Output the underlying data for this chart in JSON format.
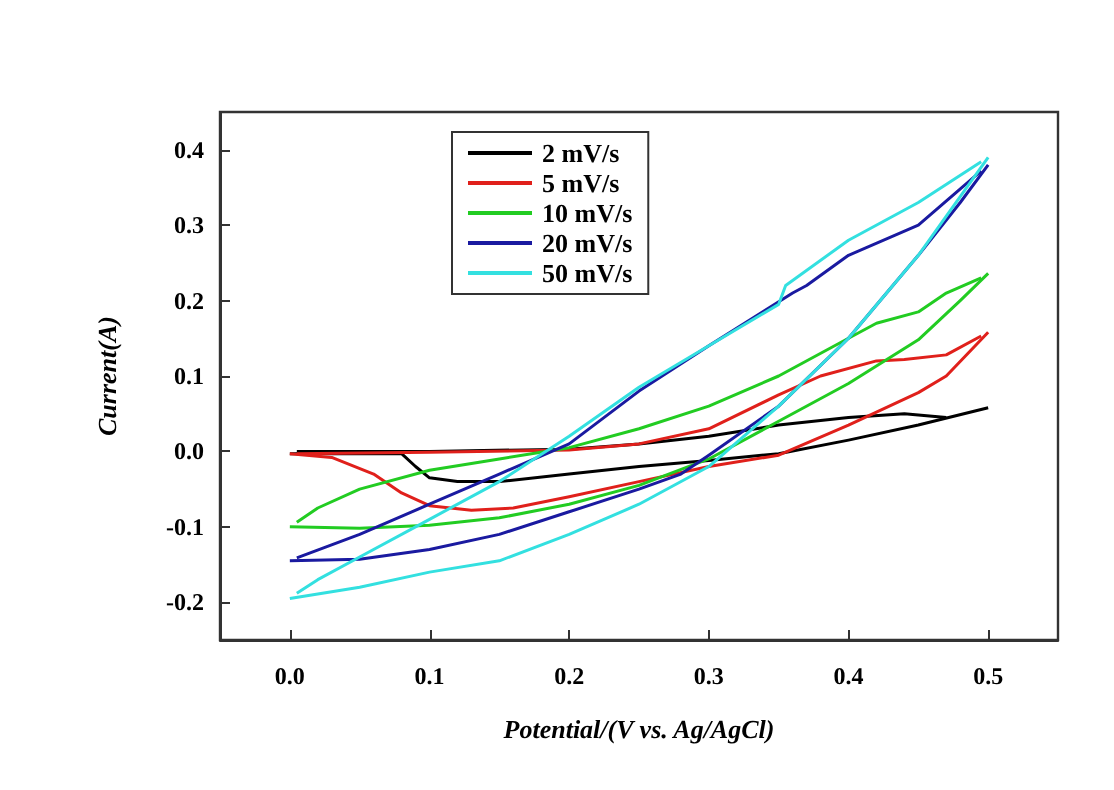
{
  "chart_data": {
    "type": "line",
    "xlabel": "Potential/(V vs. Ag/AgCl)",
    "ylabel": "Current(A)",
    "xlim": [
      -0.05,
      0.55
    ],
    "ylim": [
      -0.25,
      0.45
    ],
    "xticks": [
      {
        "value": 0,
        "label": "0.0"
      },
      0.1,
      0.2,
      0.3,
      0.4,
      0.5
    ],
    "yticks": [
      -0.2,
      -0.1,
      {
        "value": 0,
        "label": "0.0"
      },
      0.1,
      0.2,
      0.3,
      0.4
    ],
    "legend": "top",
    "grid": false,
    "marker": "none",
    "line_style": "solid",
    "series": [
      {
        "name": "2 mV/s",
        "color": "#000000",
        "x": [
          0,
          0.08,
          0.09,
          0.1,
          0.12,
          0.15,
          0.2,
          0.25,
          0.3,
          0.35,
          0.4,
          0.45,
          0.5
        ],
        "values": [
          -0.003,
          -0.003,
          -0.02,
          -0.035,
          -0.04,
          -0.04,
          -0.03,
          -0.02,
          -0.012,
          -0.003,
          0.015,
          0.035,
          0.058
        ]
      },
      {
        "color": "#000000",
        "x": [
          0.005,
          0.1,
          0.2,
          0.25,
          0.3,
          0.35,
          0.4,
          0.44,
          0.47
        ],
        "values": [
          0,
          0,
          0.003,
          0.01,
          0.02,
          0.035,
          0.045,
          0.05,
          0.045
        ]
      },
      {
        "name": "5 mV/s",
        "color": "#e0201b",
        "x": [
          0,
          0.03,
          0.06,
          0.08,
          0.1,
          0.13,
          0.16,
          0.2,
          0.25,
          0.3,
          0.35,
          0.4,
          0.45,
          0.47,
          0.5
        ],
        "values": [
          -0.003,
          -0.008,
          -0.03,
          -0.055,
          -0.072,
          -0.078,
          -0.075,
          -0.06,
          -0.04,
          -0.02,
          -0.005,
          0.035,
          0.078,
          0.1,
          0.158
        ]
      },
      {
        "color": "#e0201b",
        "x": [
          0.005,
          0.1,
          0.2,
          0.25,
          0.3,
          0.35,
          0.38,
          0.42,
          0.44,
          0.47,
          0.495
        ],
        "values": [
          -0.003,
          -0.001,
          0.002,
          0.01,
          0.03,
          0.075,
          0.1,
          0.12,
          0.122,
          0.128,
          0.153
        ]
      },
      {
        "name": "10 mV/s",
        "color": "#22cc22",
        "x": [
          0,
          0.05,
          0.1,
          0.15,
          0.2,
          0.25,
          0.3,
          0.35,
          0.4,
          0.45,
          0.48,
          0.5
        ],
        "values": [
          -0.1,
          -0.102,
          -0.098,
          -0.088,
          -0.07,
          -0.045,
          -0.01,
          0.04,
          0.09,
          0.148,
          0.2,
          0.236
        ]
      },
      {
        "color": "#22cc22",
        "x": [
          0.005,
          0.02,
          0.05,
          0.1,
          0.15,
          0.2,
          0.25,
          0.3,
          0.35,
          0.4,
          0.42,
          0.45,
          0.47,
          0.495
        ],
        "values": [
          -0.094,
          -0.075,
          -0.05,
          -0.025,
          -0.01,
          0.005,
          0.03,
          0.06,
          0.1,
          0.15,
          0.17,
          0.185,
          0.21,
          0.23
        ]
      },
      {
        "name": "20 mV/s",
        "color": "#1a1aa0",
        "x": [
          0,
          0.05,
          0.1,
          0.15,
          0.2,
          0.25,
          0.28,
          0.3,
          0.35,
          0.4,
          0.45,
          0.48,
          0.5
        ],
        "values": [
          -0.145,
          -0.143,
          -0.13,
          -0.11,
          -0.08,
          -0.05,
          -0.03,
          -0.005,
          0.06,
          0.15,
          0.26,
          0.33,
          0.38
        ]
      },
      {
        "color": "#1a1aa0",
        "x": [
          0.005,
          0.05,
          0.1,
          0.15,
          0.2,
          0.25,
          0.3,
          0.36,
          0.37,
          0.4,
          0.45,
          0.495
        ],
        "values": [
          -0.141,
          -0.11,
          -0.07,
          -0.03,
          0.01,
          0.08,
          0.14,
          0.21,
          0.22,
          0.26,
          0.3,
          0.372
        ]
      },
      {
        "name": "50 mV/s",
        "color": "#33e0e0",
        "x": [
          0,
          0.05,
          0.1,
          0.15,
          0.2,
          0.25,
          0.3,
          0.35,
          0.4,
          0.45,
          0.5
        ],
        "values": [
          -0.195,
          -0.18,
          -0.16,
          -0.145,
          -0.11,
          -0.07,
          -0.02,
          0.06,
          0.15,
          0.26,
          0.39
        ]
      },
      {
        "color": "#33e0e0",
        "x": [
          0.005,
          0.02,
          0.05,
          0.1,
          0.15,
          0.2,
          0.25,
          0.3,
          0.35,
          0.355,
          0.4,
          0.45,
          0.495
        ],
        "values": [
          -0.188,
          -0.17,
          -0.14,
          -0.09,
          -0.04,
          0.02,
          0.085,
          0.14,
          0.195,
          0.22,
          0.28,
          0.33,
          0.384
        ]
      }
    ]
  }
}
